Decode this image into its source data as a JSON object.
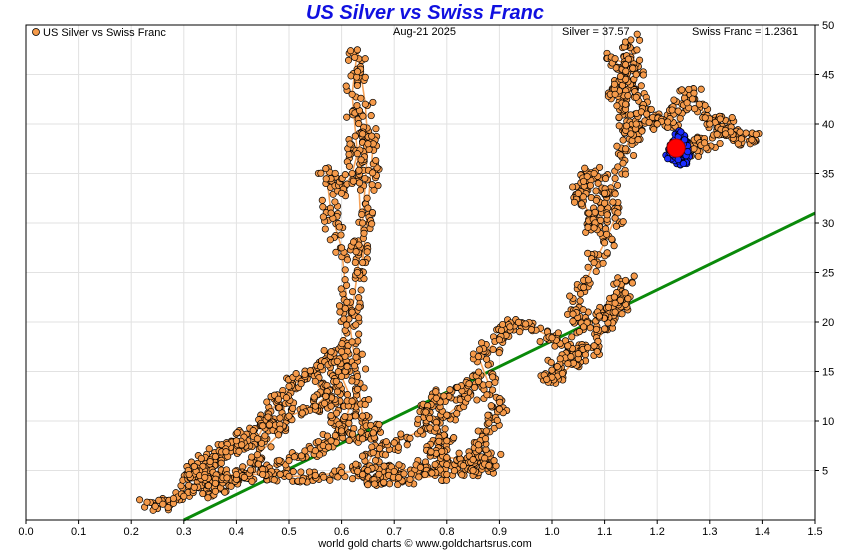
{
  "chart_data": {
    "type": "scatter",
    "title": "US Silver vs Swiss Franc",
    "legend": "US Silver vs Swiss Franc",
    "date": "Aug-21  2025",
    "silver_readout": "Silver = 37.57",
    "franc_readout": "Swiss Franc = 1.2361",
    "footer": "world gold charts © www.goldchartsrus.com",
    "xlim": [
      0,
      1.5
    ],
    "ylim": [
      0,
      50
    ],
    "x_ticks": [
      "0.0",
      "0.1",
      "0.2",
      "0.3",
      "0.4",
      "0.5",
      "0.6",
      "0.7",
      "0.8",
      "0.9",
      "1.0",
      "1.1",
      "1.2",
      "1.3",
      "1.4",
      "1.5"
    ],
    "y_ticks": [
      "5",
      "10",
      "15",
      "20",
      "25",
      "30",
      "35",
      "40",
      "45",
      "50"
    ],
    "grid": true,
    "colors": {
      "history": "#f59a4a",
      "history_line": "#f6a35a",
      "recent": "#1a2cff",
      "current": "#ff0000",
      "trend": "#0a8a0a",
      "title": "#1010e0"
    },
    "trend_line": {
      "x": [
        0.3,
        1.5
      ],
      "y": [
        0,
        31
      ]
    },
    "current_point": {
      "x": 1.2361,
      "y": 37.57
    },
    "series": [
      {
        "name": "US Silver vs Swiss Franc",
        "path": [
          [
            0.23,
            1.8
          ],
          [
            0.26,
            1.6
          ],
          [
            0.3,
            2.4
          ],
          [
            0.32,
            3.3
          ],
          [
            0.36,
            2.9
          ],
          [
            0.4,
            4.3
          ],
          [
            0.44,
            6.6
          ],
          [
            0.48,
            8.6
          ],
          [
            0.5,
            13.5
          ],
          [
            0.53,
            14.7
          ],
          [
            0.48,
            12.2
          ],
          [
            0.46,
            10.4
          ],
          [
            0.44,
            8.2
          ],
          [
            0.41,
            7.6
          ],
          [
            0.38,
            6.9
          ],
          [
            0.35,
            5.9
          ],
          [
            0.34,
            4.6
          ],
          [
            0.36,
            3.7
          ],
          [
            0.4,
            4.1
          ],
          [
            0.45,
            5.1
          ],
          [
            0.5,
            6.0
          ],
          [
            0.55,
            7.0
          ],
          [
            0.58,
            8.0
          ],
          [
            0.6,
            9.2
          ],
          [
            0.62,
            12.0
          ],
          [
            0.6,
            14.5
          ],
          [
            0.58,
            17.0
          ],
          [
            0.56,
            15.5
          ],
          [
            0.55,
            14.0
          ],
          [
            0.58,
            11.5
          ],
          [
            0.6,
            9.0
          ],
          [
            0.64,
            8.2
          ],
          [
            0.66,
            8.8
          ],
          [
            0.64,
            10.5
          ],
          [
            0.63,
            14.5
          ],
          [
            0.62,
            18.0
          ],
          [
            0.61,
            22.0
          ],
          [
            0.6,
            27.5
          ],
          [
            0.58,
            31.0
          ],
          [
            0.57,
            35.5
          ],
          [
            0.6,
            33.0
          ],
          [
            0.62,
            35.0
          ],
          [
            0.64,
            39.0
          ],
          [
            0.66,
            38.0
          ],
          [
            0.65,
            31.5
          ],
          [
            0.64,
            26.0
          ],
          [
            0.63,
            37.0
          ],
          [
            0.62,
            43.0
          ],
          [
            0.63,
            47.5
          ],
          [
            0.645,
            42.0
          ],
          [
            0.65,
            38.0
          ],
          [
            0.64,
            30.0
          ],
          [
            0.63,
            25.0
          ],
          [
            0.62,
            21.0
          ],
          [
            0.6,
            17.0
          ],
          [
            0.59,
            14.0
          ],
          [
            0.57,
            12.5
          ],
          [
            0.55,
            11.5
          ],
          [
            0.5,
            10.5
          ],
          [
            0.45,
            9.5
          ],
          [
            0.4,
            8.0
          ],
          [
            0.36,
            6.4
          ],
          [
            0.32,
            5.4
          ],
          [
            0.31,
            4.6
          ],
          [
            0.34,
            4.3
          ],
          [
            0.4,
            4.6
          ],
          [
            0.45,
            4.6
          ],
          [
            0.5,
            4.4
          ],
          [
            0.55,
            4.5
          ],
          [
            0.6,
            4.8
          ],
          [
            0.65,
            5.0
          ],
          [
            0.7,
            4.9
          ],
          [
            0.75,
            5.3
          ],
          [
            0.8,
            5.6
          ],
          [
            0.85,
            5.0
          ],
          [
            0.88,
            5.5
          ],
          [
            0.8,
            4.6
          ],
          [
            0.73,
            4.1
          ],
          [
            0.68,
            3.8
          ],
          [
            0.64,
            4.6
          ],
          [
            0.66,
            6.8
          ],
          [
            0.7,
            7.8
          ],
          [
            0.75,
            9.0
          ],
          [
            0.8,
            10.6
          ],
          [
            0.84,
            12.3
          ],
          [
            0.86,
            14.0
          ],
          [
            0.82,
            13.4
          ],
          [
            0.78,
            12.3
          ],
          [
            0.76,
            10.9
          ],
          [
            0.78,
            9.3
          ],
          [
            0.8,
            8.0
          ],
          [
            0.77,
            6.9
          ],
          [
            0.8,
            6.3
          ],
          [
            0.85,
            6.1
          ],
          [
            0.89,
            6.0
          ],
          [
            0.86,
            7.6
          ],
          [
            0.88,
            9.8
          ],
          [
            0.9,
            11.2
          ],
          [
            0.88,
            13.7
          ],
          [
            0.86,
            16.5
          ],
          [
            0.9,
            18.2
          ],
          [
            0.92,
            19.5
          ],
          [
            0.95,
            19.8
          ],
          [
            1.0,
            18.4
          ],
          [
            1.03,
            17.6
          ],
          [
            1.05,
            16.3
          ],
          [
            1.02,
            14.8
          ],
          [
            0.99,
            14.2
          ],
          [
            1.01,
            15.5
          ],
          [
            1.05,
            16.8
          ],
          [
            1.08,
            17.6
          ],
          [
            1.1,
            19.3
          ],
          [
            1.12,
            21.0
          ],
          [
            1.13,
            22.2
          ],
          [
            1.14,
            24.2
          ],
          [
            1.12,
            21.9
          ],
          [
            1.09,
            20.6
          ],
          [
            1.06,
            19.5
          ],
          [
            1.04,
            20.8
          ],
          [
            1.06,
            23.5
          ],
          [
            1.08,
            26.0
          ],
          [
            1.1,
            28.0
          ],
          [
            1.12,
            30.5
          ],
          [
            1.1,
            33.0
          ],
          [
            1.08,
            35.0
          ],
          [
            1.06,
            34.2
          ],
          [
            1.05,
            33.0
          ],
          [
            1.07,
            31.0
          ],
          [
            1.08,
            29.5
          ],
          [
            1.1,
            32.0
          ],
          [
            1.12,
            34.5
          ],
          [
            1.14,
            37.5
          ],
          [
            1.16,
            40.0
          ],
          [
            1.15,
            39.0
          ],
          [
            1.14,
            41.5
          ],
          [
            1.15,
            48.5
          ],
          [
            1.16,
            45.0
          ],
          [
            1.14,
            42.0
          ],
          [
            1.12,
            43.0
          ],
          [
            1.13,
            44.8
          ],
          [
            1.12,
            46.6
          ],
          [
            1.14,
            46.0
          ],
          [
            1.16,
            42.7
          ],
          [
            1.18,
            41.0
          ],
          [
            1.2,
            40.0
          ],
          [
            1.22,
            40.2
          ],
          [
            1.24,
            41.3
          ],
          [
            1.26,
            43.5
          ],
          [
            1.28,
            42.0
          ],
          [
            1.3,
            40.0
          ],
          [
            1.32,
            40.5
          ],
          [
            1.34,
            39.2
          ],
          [
            1.36,
            38.5
          ],
          [
            1.38,
            38.4
          ],
          [
            1.33,
            39.0
          ],
          [
            1.29,
            38.1
          ],
          [
            1.27,
            37.5
          ],
          [
            1.25,
            37.0
          ],
          [
            1.24,
            37.6
          ]
        ]
      },
      {
        "name": "recent",
        "path": [
          [
            1.22,
            36.5
          ],
          [
            1.23,
            37.5
          ],
          [
            1.235,
            38.0
          ],
          [
            1.24,
            38.7
          ],
          [
            1.245,
            39.2
          ],
          [
            1.25,
            38.0
          ],
          [
            1.255,
            36.8
          ],
          [
            1.25,
            36.0
          ],
          [
            1.24,
            36.4
          ],
          [
            1.23,
            36.9
          ],
          [
            1.238,
            37.2
          ],
          [
            1.246,
            37.8
          ],
          [
            1.252,
            38.4
          ],
          [
            1.258,
            37.2
          ]
        ]
      }
    ]
  }
}
